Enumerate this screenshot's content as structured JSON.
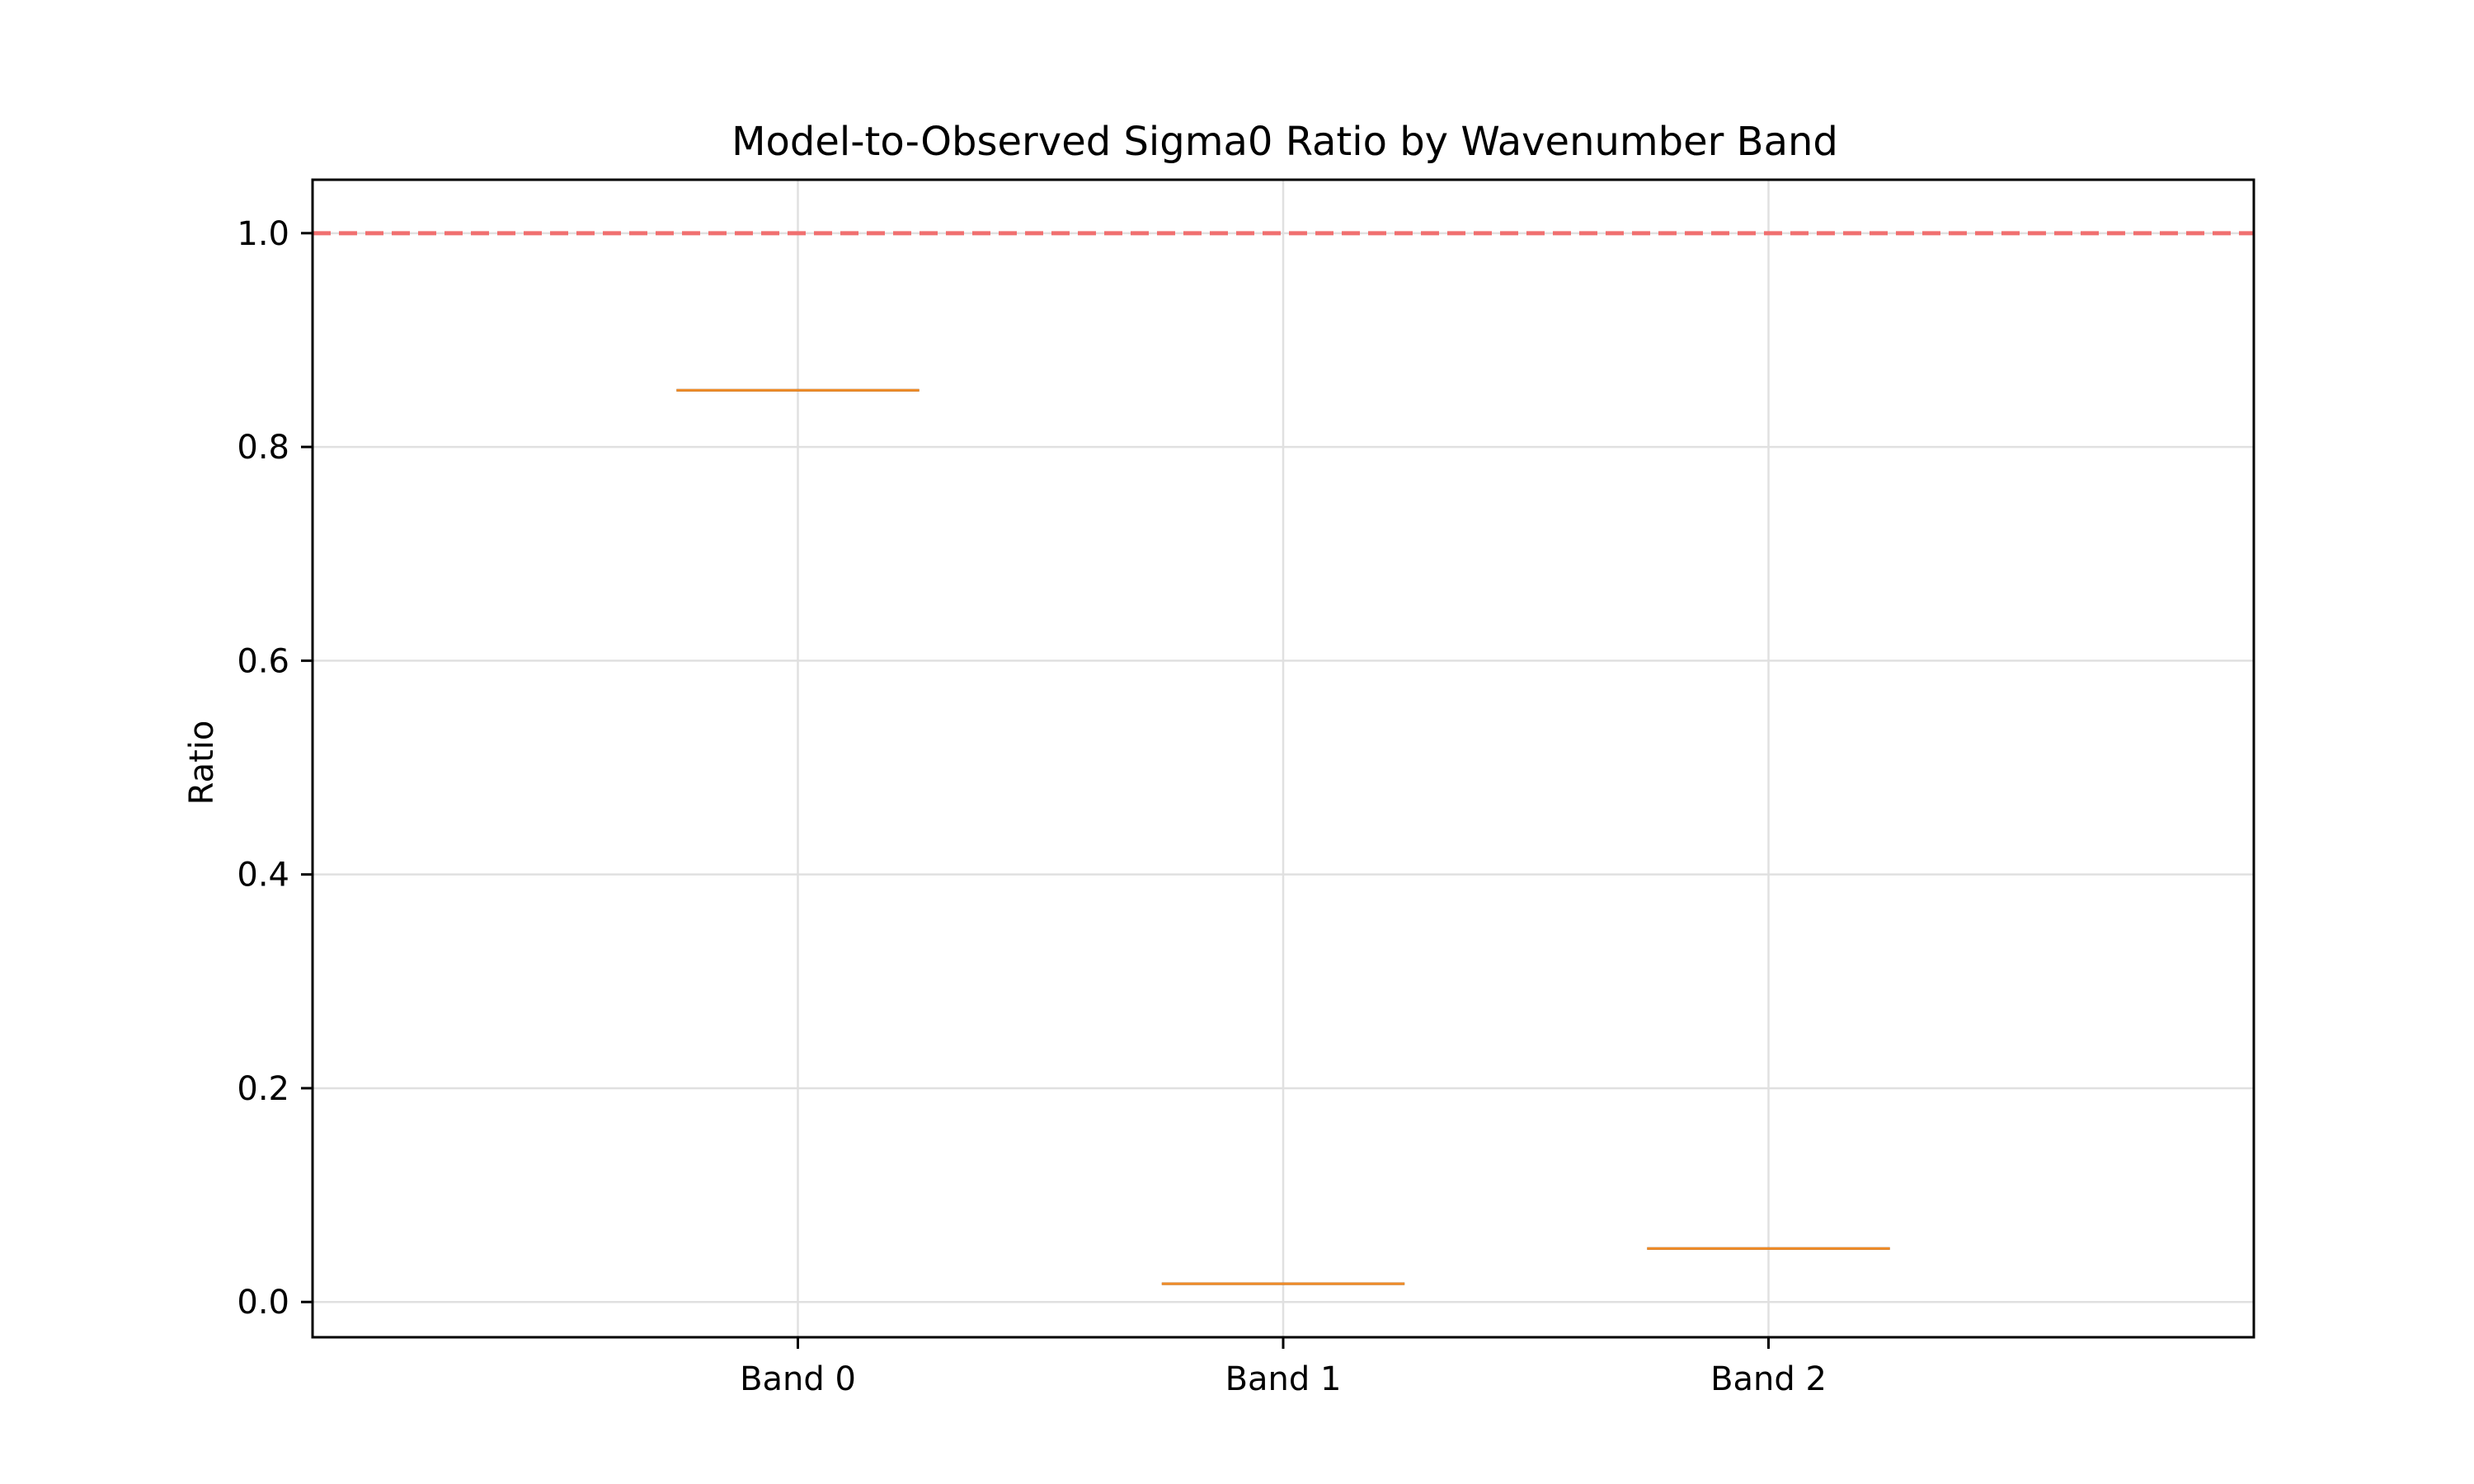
{
  "chart_data": {
    "type": "box",
    "title": "Model-to-Observed Sigma0 Ratio by Wavenumber Band",
    "xlabel": "",
    "ylabel": "Ratio",
    "categories": [
      "Band 0",
      "Band 1",
      "Band 2"
    ],
    "values": [
      0.853,
      0.017,
      0.05
    ],
    "ylim": [
      -0.033,
      1.05
    ],
    "yticks": [
      0.0,
      0.2,
      0.4,
      0.6,
      0.8,
      1.0
    ],
    "ytick_labels": [
      "0.0",
      "0.2",
      "0.4",
      "0.6",
      "0.8",
      "1.0"
    ],
    "reference_line": {
      "y": 1.0,
      "style": "dashed",
      "color": "#f07070"
    },
    "median_color": "#f08c28",
    "box_color": "#000000",
    "grid": true
  }
}
